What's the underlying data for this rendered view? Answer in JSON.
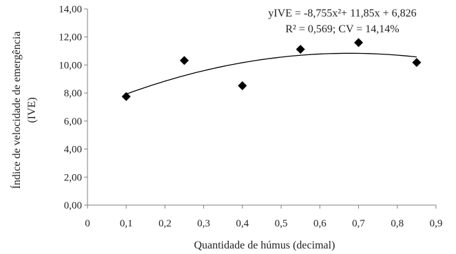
{
  "chart_data": {
    "type": "scatter",
    "title": "",
    "xlabel": "Quantidade de húmus (decimal)",
    "ylabel_lines": [
      "Índice de velocidade de emergência",
      "(IVE)"
    ],
    "xlim": [
      0,
      0.9
    ],
    "ylim": [
      0,
      14
    ],
    "x_ticks": [
      0,
      0.1,
      0.2,
      0.3,
      0.4,
      0.5,
      0.6,
      0.7,
      0.8,
      0.9
    ],
    "x_tick_labels": [
      "0",
      "0,1",
      "0,2",
      "0,3",
      "0,4",
      "0,5",
      "0,6",
      "0,7",
      "0,8",
      "0,9"
    ],
    "y_ticks": [
      0,
      2,
      4,
      6,
      8,
      10,
      12,
      14
    ],
    "y_tick_labels": [
      "0,00",
      "2,00",
      "4,00",
      "6,00",
      "8,00",
      "10,00",
      "12,00",
      "14,00"
    ],
    "grid": false,
    "legend": "none",
    "series": [
      {
        "marker": "diamond",
        "color": "#000000",
        "points": [
          {
            "x": 0.1,
            "y": 7.75
          },
          {
            "x": 0.25,
            "y": 10.32
          },
          {
            "x": 0.4,
            "y": 8.52
          },
          {
            "x": 0.55,
            "y": 11.12
          },
          {
            "x": 0.7,
            "y": 11.6
          },
          {
            "x": 0.85,
            "y": 10.18
          }
        ]
      }
    ],
    "trendline": {
      "kind": "polynomial-2",
      "a": -8.755,
      "b": 11.85,
      "c": 6.826,
      "x_range": [
        0.1,
        0.85
      ],
      "color": "#000000"
    },
    "annotations": {
      "equation": "yIVE = -8,755x²+ 11,85x + 6,826",
      "stats": "R² = 0,569; CV = 14,14%"
    }
  }
}
